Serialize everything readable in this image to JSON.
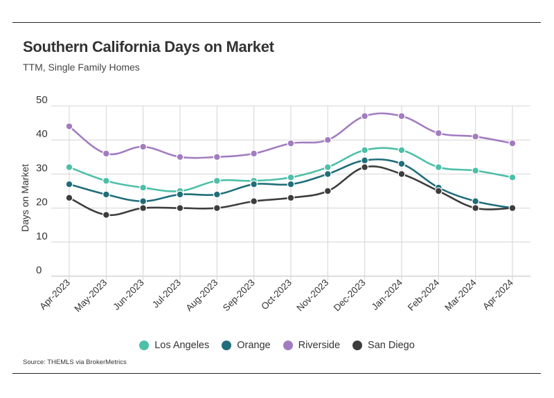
{
  "header": {
    "title": "Southern California Days on Market",
    "subtitle": "TTM, Single Family Homes"
  },
  "footer": {
    "source": "Source:  THEMLS via BrokerMetrics"
  },
  "chart_data": {
    "type": "line",
    "title": "Southern California Days on Market",
    "subtitle": "TTM, Single Family Homes",
    "xlabel": "",
    "ylabel": "Days on Market",
    "ylim": [
      0,
      50
    ],
    "yticks": [
      0,
      10,
      20,
      30,
      40,
      50
    ],
    "grid": true,
    "legend_position": "bottom",
    "categories": [
      "Apr-2023",
      "May-2023",
      "Jun-2023",
      "Jul-2023",
      "Aug-2023",
      "Sep-2023",
      "Oct-2023",
      "Nov-2023",
      "Dec-2023",
      "Jan-2024",
      "Feb-2024",
      "Mar-2024",
      "Apr-2024"
    ],
    "series": [
      {
        "name": "Los Angeles",
        "color": "#4dbfa8",
        "values": [
          32,
          28,
          26,
          25,
          28,
          28,
          29,
          32,
          37,
          37,
          32,
          31,
          29
        ]
      },
      {
        "name": "Orange",
        "color": "#1f6e7a",
        "values": [
          27,
          24,
          22,
          24,
          24,
          27,
          27,
          30,
          34,
          33,
          26,
          22,
          20
        ]
      },
      {
        "name": "Riverside",
        "color": "#a27cc0",
        "values": [
          44,
          36,
          38,
          35,
          35,
          36,
          39,
          40,
          47,
          47,
          42,
          41,
          39
        ]
      },
      {
        "name": "San Diego",
        "color": "#3d3d3d",
        "values": [
          23,
          18,
          20,
          20,
          20,
          22,
          23,
          25,
          32,
          30,
          25,
          20,
          20
        ]
      }
    ]
  }
}
